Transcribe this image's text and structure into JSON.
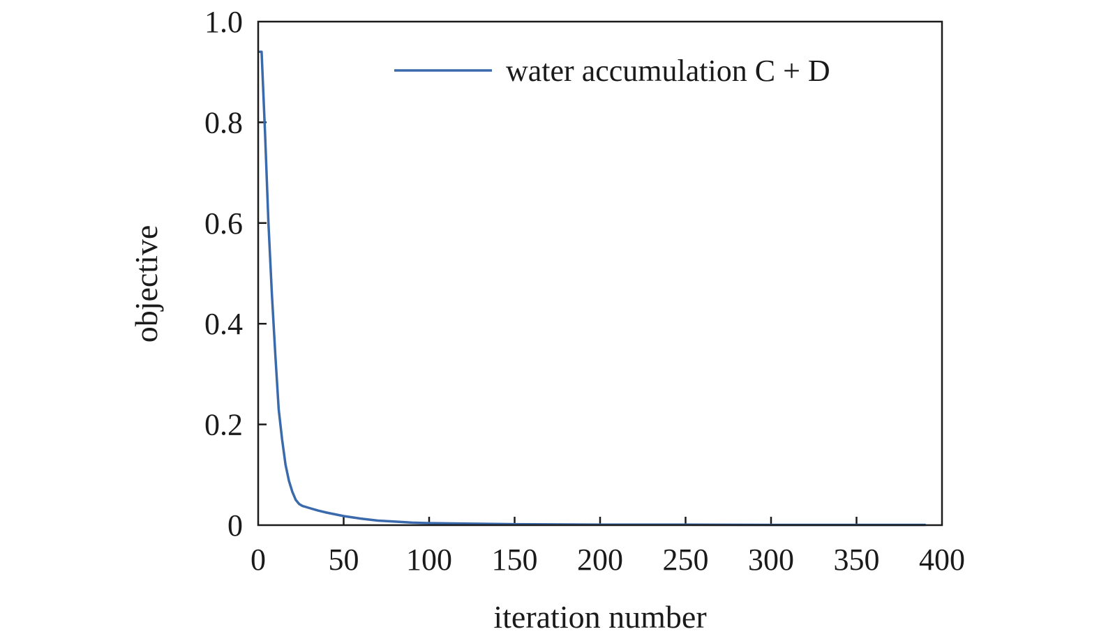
{
  "chart_data": {
    "type": "line",
    "xlabel": "iteration number",
    "ylabel": "objective",
    "xlim": [
      0,
      400
    ],
    "ylim": [
      0,
      1.0
    ],
    "x_ticks": [
      0,
      50,
      100,
      150,
      200,
      250,
      300,
      350,
      400
    ],
    "x_tick_labels": [
      "0",
      "50",
      "100",
      "150",
      "200",
      "250",
      "300",
      "350",
      "400"
    ],
    "y_ticks": [
      0,
      0.2,
      0.4,
      0.6,
      0.8,
      1.0
    ],
    "y_tick_labels": [
      "0",
      "0.2",
      "0.4",
      "0.6",
      "0.8",
      "1.0"
    ],
    "grid": false,
    "legend_position": "top-right",
    "series": [
      {
        "name": "water accumulation C + D",
        "color": "#3a6aab",
        "x": [
          1,
          2,
          4,
          6,
          8,
          10,
          12,
          14,
          16,
          18,
          20,
          22,
          24,
          26,
          28,
          30,
          35,
          40,
          50,
          60,
          70,
          80,
          90,
          100,
          120,
          150,
          200,
          250,
          300,
          350,
          390
        ],
        "y": [
          0.94,
          0.94,
          0.78,
          0.6,
          0.46,
          0.34,
          0.23,
          0.17,
          0.12,
          0.088,
          0.066,
          0.05,
          0.042,
          0.038,
          0.036,
          0.034,
          0.029,
          0.025,
          0.018,
          0.013,
          0.009,
          0.007,
          0.005,
          0.004,
          0.003,
          0.002,
          0.001,
          0.001,
          0.0005,
          0.0005,
          0.0005
        ]
      }
    ]
  }
}
